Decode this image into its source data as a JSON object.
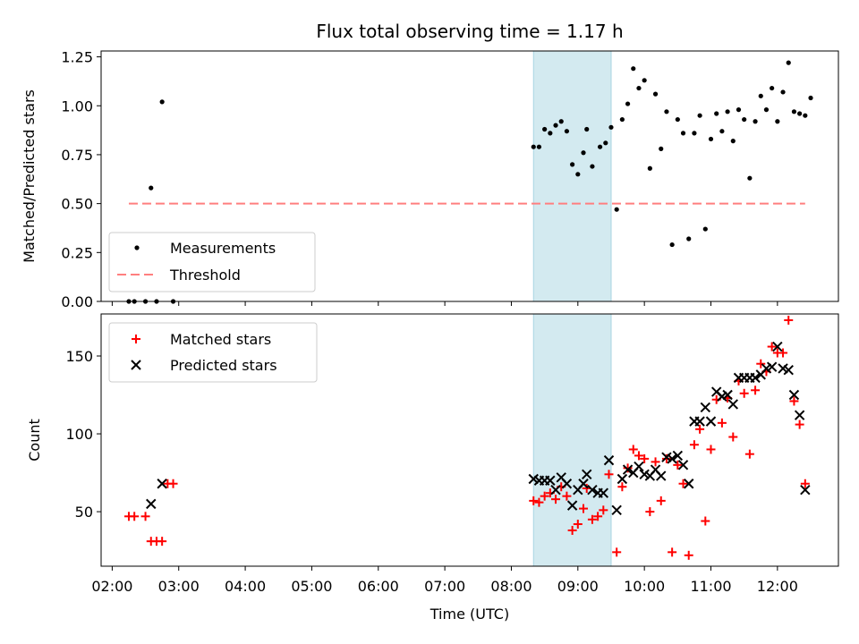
{
  "chart_data": [
    {
      "type": "scatter",
      "title": "Flux total observing time = 1.17 h",
      "xlabel": "",
      "ylabel": "Matched/Predicted stars",
      "ylim": [
        0,
        1.28
      ],
      "yticks": [
        0.0,
        0.25,
        0.5,
        0.75,
        1.0,
        1.25
      ],
      "ytick_labels": [
        "0.00",
        "0.25",
        "0.50",
        "0.75",
        "1.00",
        "1.25"
      ],
      "legend_position": "lower-left",
      "shaded_interval": {
        "start": "08:20",
        "end": "09:30",
        "color": "#d3eaf0"
      },
      "series": [
        {
          "name": "Measurements",
          "marker": "dot",
          "color": "#000000",
          "points": [
            [
              "02:15",
              0.0
            ],
            [
              "02:20",
              0.0
            ],
            [
              "02:30",
              0.0
            ],
            [
              "02:40",
              0.0
            ],
            [
              "02:55",
              0.0
            ],
            [
              "02:35",
              0.58
            ],
            [
              "02:45",
              1.02
            ],
            [
              "08:20",
              0.79
            ],
            [
              "08:25",
              0.79
            ],
            [
              "08:30",
              0.88
            ],
            [
              "08:35",
              0.86
            ],
            [
              "08:40",
              0.9
            ],
            [
              "08:45",
              0.92
            ],
            [
              "08:50",
              0.87
            ],
            [
              "08:55",
              0.7
            ],
            [
              "09:00",
              0.65
            ],
            [
              "09:05",
              0.76
            ],
            [
              "09:08",
              0.88
            ],
            [
              "09:13",
              0.69
            ],
            [
              "09:20",
              0.79
            ],
            [
              "09:25",
              0.81
            ],
            [
              "09:30",
              0.89
            ],
            [
              "09:35",
              0.47
            ],
            [
              "09:40",
              0.93
            ],
            [
              "09:45",
              1.01
            ],
            [
              "09:50",
              1.19
            ],
            [
              "09:55",
              1.09
            ],
            [
              "10:00",
              1.13
            ],
            [
              "10:05",
              0.68
            ],
            [
              "10:10",
              1.06
            ],
            [
              "10:15",
              0.78
            ],
            [
              "10:20",
              0.97
            ],
            [
              "10:25",
              0.29
            ],
            [
              "10:30",
              0.93
            ],
            [
              "10:35",
              0.86
            ],
            [
              "10:40",
              0.32
            ],
            [
              "10:45",
              0.86
            ],
            [
              "10:50",
              0.95
            ],
            [
              "10:55",
              0.37
            ],
            [
              "11:00",
              0.83
            ],
            [
              "11:05",
              0.96
            ],
            [
              "11:10",
              0.87
            ],
            [
              "11:15",
              0.97
            ],
            [
              "11:20",
              0.82
            ],
            [
              "11:25",
              0.98
            ],
            [
              "11:30",
              0.93
            ],
            [
              "11:35",
              0.63
            ],
            [
              "11:40",
              0.92
            ],
            [
              "11:45",
              1.05
            ],
            [
              "11:50",
              0.98
            ],
            [
              "11:55",
              1.09
            ],
            [
              "12:00",
              0.92
            ],
            [
              "12:05",
              1.07
            ],
            [
              "12:10",
              1.22
            ],
            [
              "12:15",
              0.97
            ],
            [
              "12:20",
              0.96
            ],
            [
              "12:25",
              0.95
            ],
            [
              "12:30",
              1.04
            ]
          ]
        },
        {
          "name": "Threshold",
          "marker": "dashed-line",
          "color": "#ff7f7f",
          "points": [
            [
              "02:15",
              0.5
            ],
            [
              "12:25",
              0.5
            ]
          ]
        }
      ]
    },
    {
      "type": "scatter",
      "title": "",
      "xlabel": "Time (UTC)",
      "ylabel": "Count",
      "ylim": [
        15,
        177
      ],
      "yticks": [
        50,
        100,
        150
      ],
      "ytick_labels": [
        "50",
        "100",
        "150"
      ],
      "xlim": [
        "01:50",
        "12:55"
      ],
      "xticks": [
        "02:00",
        "03:00",
        "04:00",
        "05:00",
        "06:00",
        "07:00",
        "08:00",
        "09:00",
        "10:00",
        "11:00",
        "12:00"
      ],
      "legend_position": "top-left",
      "shaded_interval": {
        "start": "08:20",
        "end": "09:30",
        "color": "#d3eaf0"
      },
      "series": [
        {
          "name": "Matched stars",
          "marker": "plus",
          "color": "#ff0000",
          "points": [
            [
              "02:15",
              47
            ],
            [
              "02:20",
              47
            ],
            [
              "02:30",
              47
            ],
            [
              "02:35",
              31
            ],
            [
              "02:40",
              31
            ],
            [
              "02:45",
              31
            ],
            [
              "02:50",
              68
            ],
            [
              "02:55",
              68
            ],
            [
              "08:20",
              57
            ],
            [
              "08:25",
              56
            ],
            [
              "08:30",
              60
            ],
            [
              "08:35",
              62
            ],
            [
              "08:40",
              58
            ],
            [
              "08:45",
              66
            ],
            [
              "08:50",
              60
            ],
            [
              "08:55",
              38
            ],
            [
              "09:00",
              42
            ],
            [
              "09:05",
              52
            ],
            [
              "09:08",
              65
            ],
            [
              "09:13",
              45
            ],
            [
              "09:18",
              47
            ],
            [
              "09:23",
              51
            ],
            [
              "09:28",
              74
            ],
            [
              "09:35",
              24
            ],
            [
              "09:40",
              66
            ],
            [
              "09:45",
              78
            ],
            [
              "09:50",
              90
            ],
            [
              "09:55",
              86
            ],
            [
              "10:00",
              84
            ],
            [
              "10:05",
              50
            ],
            [
              "10:10",
              82
            ],
            [
              "10:15",
              57
            ],
            [
              "10:20",
              84
            ],
            [
              "10:25",
              24
            ],
            [
              "10:30",
              80
            ],
            [
              "10:35",
              68
            ],
            [
              "10:40",
              22
            ],
            [
              "10:45",
              93
            ],
            [
              "10:50",
              103
            ],
            [
              "10:55",
              44
            ],
            [
              "11:00",
              90
            ],
            [
              "11:05",
              122
            ],
            [
              "11:10",
              107
            ],
            [
              "11:15",
              123
            ],
            [
              "11:20",
              98
            ],
            [
              "11:25",
              134
            ],
            [
              "11:30",
              126
            ],
            [
              "11:35",
              87
            ],
            [
              "11:40",
              128
            ],
            [
              "11:45",
              145
            ],
            [
              "11:50",
              140
            ],
            [
              "11:55",
              156
            ],
            [
              "12:00",
              152
            ],
            [
              "12:05",
              152
            ],
            [
              "12:10",
              173
            ],
            [
              "12:15",
              121
            ],
            [
              "12:20",
              106
            ],
            [
              "12:25",
              68
            ]
          ]
        },
        {
          "name": "Predicted stars",
          "marker": "x",
          "color": "#000000",
          "points": [
            [
              "02:35",
              55
            ],
            [
              "02:45",
              68
            ],
            [
              "08:20",
              71
            ],
            [
              "08:25",
              70
            ],
            [
              "08:30",
              70
            ],
            [
              "08:35",
              70
            ],
            [
              "08:40",
              64
            ],
            [
              "08:45",
              72
            ],
            [
              "08:50",
              68
            ],
            [
              "08:55",
              54
            ],
            [
              "09:00",
              64
            ],
            [
              "09:05",
              68
            ],
            [
              "09:08",
              74
            ],
            [
              "09:13",
              64
            ],
            [
              "09:18",
              62
            ],
            [
              "09:23",
              62
            ],
            [
              "09:28",
              83
            ],
            [
              "09:35",
              51
            ],
            [
              "09:40",
              71
            ],
            [
              "09:45",
              77
            ],
            [
              "09:50",
              75
            ],
            [
              "09:55",
              79
            ],
            [
              "10:00",
              74
            ],
            [
              "10:05",
              73
            ],
            [
              "10:10",
              77
            ],
            [
              "10:15",
              73
            ],
            [
              "10:20",
              85
            ],
            [
              "10:25",
              84
            ],
            [
              "10:30",
              86
            ],
            [
              "10:35",
              80
            ],
            [
              "10:40",
              68
            ],
            [
              "10:45",
              108
            ],
            [
              "10:50",
              108
            ],
            [
              "10:55",
              117
            ],
            [
              "11:00",
              108
            ],
            [
              "11:05",
              127
            ],
            [
              "11:10",
              124
            ],
            [
              "11:15",
              125
            ],
            [
              "11:20",
              119
            ],
            [
              "11:25",
              136
            ],
            [
              "11:30",
              136
            ],
            [
              "11:35",
              136
            ],
            [
              "11:40",
              136
            ],
            [
              "11:45",
              138
            ],
            [
              "11:50",
              142
            ],
            [
              "11:55",
              143
            ],
            [
              "12:00",
              156
            ],
            [
              "12:05",
              142
            ],
            [
              "12:10",
              141
            ],
            [
              "12:15",
              125
            ],
            [
              "12:20",
              112
            ],
            [
              "12:25",
              64
            ]
          ]
        }
      ]
    }
  ]
}
